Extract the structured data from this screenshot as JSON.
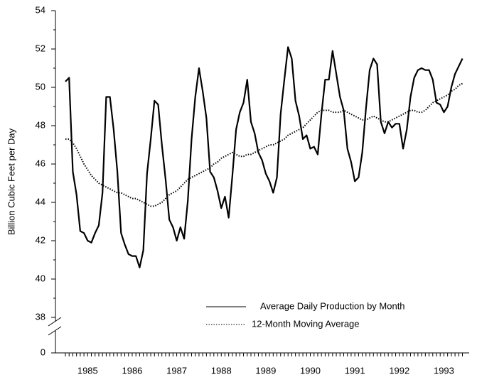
{
  "chart_data": {
    "type": "line",
    "ylabel": "Billion Cubic Feet per Day",
    "categories": [
      null,
      null,
      null,
      null,
      null,
      null,
      "1985",
      null,
      null,
      null,
      null,
      null,
      null,
      null,
      null,
      null,
      null,
      null,
      "1986",
      null,
      null,
      null,
      null,
      null,
      null,
      null,
      null,
      null,
      null,
      null,
      "1987",
      null,
      null,
      null,
      null,
      null,
      null,
      null,
      null,
      null,
      null,
      null,
      "1988",
      null,
      null,
      null,
      null,
      null,
      null,
      null,
      null,
      null,
      null,
      null,
      "1989",
      null,
      null,
      null,
      null,
      null,
      null,
      null,
      null,
      null,
      null,
      null,
      "1990",
      null,
      null,
      null,
      null,
      null,
      null,
      null,
      null,
      null,
      null,
      null,
      "1991",
      null,
      null,
      null,
      null,
      null,
      null,
      null,
      null,
      null,
      null,
      null,
      "1992",
      null,
      null,
      null,
      null,
      null,
      null,
      null,
      null,
      null,
      null,
      null,
      "1993",
      null,
      null,
      null,
      null,
      null
    ],
    "series": [
      {
        "name": "Average Daily Production by Month",
        "color": "#000000",
        "style": "solid",
        "values": [
          50.3,
          50.5,
          45.6,
          44.4,
          42.5,
          42.4,
          42.0,
          41.9,
          42.4,
          42.8,
          44.5,
          49.5,
          49.5,
          47.8,
          45.6,
          42.4,
          41.8,
          41.3,
          41.2,
          41.2,
          40.6,
          41.5,
          45.5,
          47.3,
          49.3,
          49.1,
          47.0,
          45.2,
          43.1,
          42.7,
          42.0,
          42.7,
          42.1,
          44.1,
          47.3,
          49.5,
          51.0,
          49.8,
          48.4,
          45.6,
          45.3,
          44.6,
          43.7,
          44.3,
          43.2,
          45.4,
          47.8,
          48.7,
          49.2,
          50.4,
          48.2,
          47.6,
          46.6,
          46.2,
          45.5,
          45.1,
          44.5,
          45.3,
          48.6,
          50.4,
          52.1,
          51.5,
          49.3,
          48.5,
          47.3,
          47.5,
          46.8,
          46.9,
          46.5,
          48.6,
          50.4,
          50.4,
          51.9,
          50.7,
          49.5,
          48.8,
          46.8,
          46.1,
          45.1,
          45.3,
          46.6,
          48.9,
          50.9,
          51.5,
          51.2,
          48.2,
          47.6,
          48.2,
          47.9,
          48.1,
          48.1,
          46.8,
          47.8,
          49.5,
          50.5,
          50.9,
          51.0,
          50.9,
          50.9,
          50.4,
          49.2,
          49.1,
          48.7,
          49.0,
          50.0,
          50.7,
          51.1,
          51.5
        ]
      },
      {
        "name": "12-Month Moving Average",
        "color": "#000000",
        "style": "dotted",
        "values": [
          47.3,
          47.3,
          47.1,
          46.8,
          46.4,
          46.0,
          45.7,
          45.4,
          45.2,
          45.0,
          44.9,
          44.8,
          44.7,
          44.6,
          44.5,
          44.5,
          44.4,
          44.3,
          44.2,
          44.2,
          44.1,
          44.0,
          43.9,
          43.8,
          43.8,
          43.9,
          44.0,
          44.2,
          44.4,
          44.5,
          44.6,
          44.8,
          45.0,
          45.2,
          45.3,
          45.4,
          45.5,
          45.6,
          45.7,
          45.8,
          46.0,
          46.1,
          46.3,
          46.4,
          46.5,
          46.6,
          46.5,
          46.4,
          46.4,
          46.5,
          46.5,
          46.6,
          46.7,
          46.8,
          46.9,
          47.0,
          47.0,
          47.1,
          47.2,
          47.3,
          47.5,
          47.6,
          47.7,
          47.8,
          47.9,
          48.1,
          48.3,
          48.5,
          48.7,
          48.8,
          48.8,
          48.8,
          48.7,
          48.7,
          48.7,
          48.8,
          48.7,
          48.6,
          48.5,
          48.4,
          48.3,
          48.3,
          48.4,
          48.5,
          48.4,
          48.3,
          48.2,
          48.2,
          48.3,
          48.4,
          48.5,
          48.6,
          48.7,
          48.8,
          48.8,
          48.7,
          48.7,
          48.8,
          49.0,
          49.2,
          49.3,
          49.4,
          49.5,
          49.6,
          49.8,
          49.9,
          50.1,
          50.2
        ]
      }
    ],
    "ylim": [
      38,
      54
    ],
    "yticks": [
      0,
      38,
      40,
      42,
      44,
      46,
      48,
      50,
      52,
      54
    ],
    "yminorticks": [
      39,
      41,
      43,
      45,
      47,
      49,
      51,
      53
    ],
    "axis_break": true,
    "legend": "lower right",
    "grid": false
  }
}
